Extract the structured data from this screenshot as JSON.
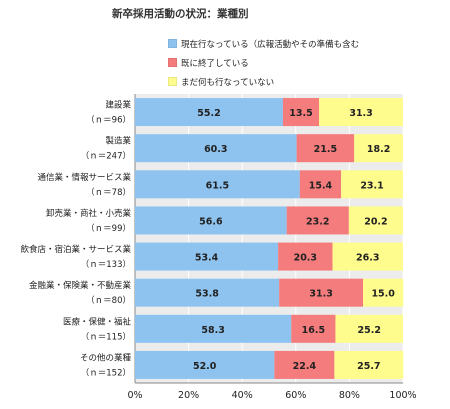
{
  "chart_data": {
    "type": "bar",
    "orientation": "horizontal",
    "stacked": true,
    "title": "新卒採用活動の状況：業種別",
    "categories": [
      [
        "建設業",
        "（ｎ＝96）"
      ],
      [
        "製造業",
        "（ｎ＝247）"
      ],
      [
        "通信業・情報サービス業",
        "（ｎ＝78）"
      ],
      [
        "卸売業・商社・小売業",
        "（ｎ＝99）"
      ],
      [
        "飲食店・宿泊業・サービス業",
        "（ｎ＝133）"
      ],
      [
        "金融業・保険業・不動産業",
        "（ｎ＝80）"
      ],
      [
        "医療・保健・福祉",
        "（ｎ＝115）"
      ],
      [
        "その他の業種",
        "（ｎ＝152）"
      ]
    ],
    "series": [
      {
        "name": "現在行なっている（広報活動やその準備も含む",
        "color": "#8ec3f0",
        "values": [
          55.2,
          60.3,
          61.5,
          56.6,
          53.4,
          53.8,
          58.3,
          52.0
        ]
      },
      {
        "name": "既に終了している",
        "color": "#f47c7c",
        "values": [
          13.5,
          21.5,
          15.4,
          23.2,
          20.3,
          31.3,
          16.5,
          22.4
        ]
      },
      {
        "name": "まだ何も行なっていない",
        "color": "#fefc8c",
        "values": [
          31.3,
          18.2,
          23.1,
          20.2,
          26.3,
          15.0,
          25.2,
          25.7
        ]
      }
    ],
    "xlim": [
      0,
      100
    ],
    "xticks": [
      "0%",
      "20%",
      "40%",
      "60%",
      "80%",
      "100%"
    ],
    "grid": true,
    "legend_position": "top"
  }
}
